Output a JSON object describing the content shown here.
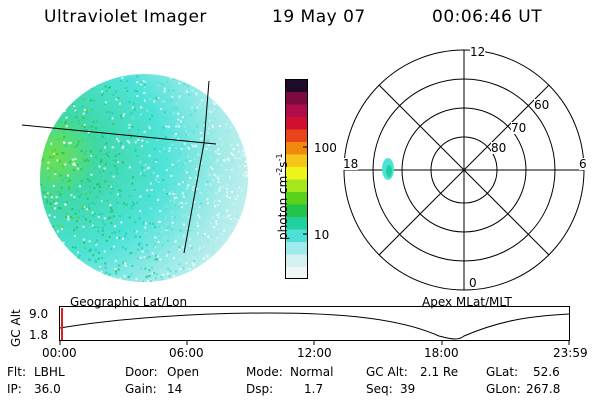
{
  "header": {
    "title": "Ultraviolet Imager",
    "date": "19 May 07",
    "time": "00:06:46 UT"
  },
  "images": {
    "left_label": "Geographic Lat/Lon",
    "right_label": "Apex MLat/MLT"
  },
  "colorbar": {
    "unit": "photon cm",
    "unit_exp1": "-2",
    "unit_mid": "s",
    "unit_exp2": "-1",
    "ticks": [
      "100",
      "10"
    ],
    "colors": [
      "#f0f6f6",
      "#d4f1f1",
      "#9feaea",
      "#4ce0d6",
      "#22cf9e",
      "#25c24a",
      "#5bd21a",
      "#a6e61c",
      "#eef51a",
      "#f5c618",
      "#f3880e",
      "#e8431b",
      "#d01030",
      "#b00c4a",
      "#7a0a40",
      "#1e0b2a"
    ]
  },
  "polar": {
    "mlat_labels": [
      "80",
      "70",
      "60"
    ],
    "mlt_labels": [
      "12",
      "18",
      "6",
      "0"
    ]
  },
  "orbit": {
    "y_label": "GC Alt",
    "y_ticks": [
      "9.0",
      "1.8"
    ],
    "time_ticks": [
      "00:00",
      "06:00",
      "12:00",
      "18:00",
      "23:59"
    ],
    "marker_color": "#e02020"
  },
  "info": {
    "filter_label": "Flt:",
    "filter_value": "LBHL",
    "ip_label": "IP:",
    "ip_value": "36.0",
    "door_label": "Door:",
    "door_value": "Open",
    "gain_label": "Gain:",
    "gain_value": "14",
    "mode_label": "Mode:",
    "mode_value": "Normal",
    "dsp_label": "Dsp:",
    "dsp_value": "1.7",
    "gcalt_label": "GC Alt:",
    "gcalt_value": "2.1 Re",
    "seq_label": "Seq:",
    "seq_value": "39",
    "glat_label": "GLat:",
    "glat_value": "52.6",
    "glon_label": "GLon:",
    "glon_value": "267.8"
  }
}
